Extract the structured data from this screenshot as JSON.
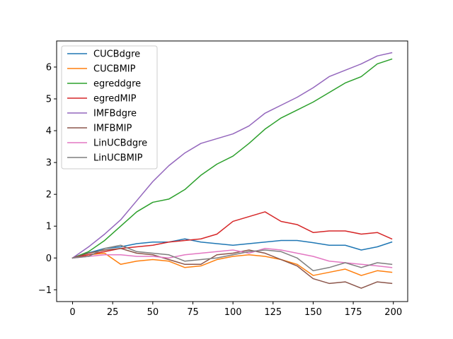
{
  "chart_data": {
    "type": "line",
    "title": "",
    "xlabel": "",
    "ylabel": "",
    "xlim": [
      -9.95,
      208.95
    ],
    "ylim": [
      -1.37,
      6.82
    ],
    "xticks": [
      0,
      25,
      50,
      75,
      100,
      125,
      150,
      175,
      200
    ],
    "yticks": [
      -1,
      0,
      1,
      2,
      3,
      4,
      5,
      6
    ],
    "grid": false,
    "legend_position": "top-left",
    "x": [
      0,
      10,
      20,
      30,
      40,
      50,
      60,
      70,
      80,
      90,
      100,
      110,
      120,
      130,
      140,
      150,
      160,
      170,
      180,
      190,
      199
    ],
    "series": [
      {
        "name": "CUCBdgre",
        "color": "#1f77b4",
        "values": [
          0.0,
          0.16,
          0.3,
          0.35,
          0.45,
          0.5,
          0.5,
          0.6,
          0.5,
          0.45,
          0.4,
          0.45,
          0.5,
          0.55,
          0.55,
          0.48,
          0.4,
          0.4,
          0.25,
          0.35,
          0.5
        ]
      },
      {
        "name": "CUCBMIP",
        "color": "#ff7f0e",
        "values": [
          0.0,
          0.1,
          0.15,
          -0.2,
          -0.1,
          -0.05,
          -0.1,
          -0.3,
          -0.25,
          -0.05,
          0.05,
          0.1,
          0.05,
          -0.05,
          -0.2,
          -0.55,
          -0.45,
          -0.35,
          -0.55,
          -0.4,
          -0.45
        ]
      },
      {
        "name": "egreddgre",
        "color": "#2ca02c",
        "values": [
          0.0,
          0.2,
          0.55,
          1.0,
          1.45,
          1.75,
          1.85,
          2.15,
          2.6,
          2.95,
          3.2,
          3.6,
          4.05,
          4.4,
          4.65,
          4.9,
          5.2,
          5.5,
          5.7,
          6.1,
          6.25
        ]
      },
      {
        "name": "egredMIP",
        "color": "#d62728",
        "values": [
          0.0,
          0.1,
          0.2,
          0.3,
          0.35,
          0.4,
          0.5,
          0.55,
          0.6,
          0.75,
          1.15,
          1.3,
          1.45,
          1.15,
          1.05,
          0.8,
          0.85,
          0.85,
          0.75,
          0.8,
          0.6
        ]
      },
      {
        "name": "IMFBdgre",
        "color": "#9467bd",
        "values": [
          0.0,
          0.35,
          0.75,
          1.2,
          1.8,
          2.4,
          2.9,
          3.3,
          3.6,
          3.75,
          3.9,
          4.15,
          4.55,
          4.8,
          5.05,
          5.35,
          5.7,
          5.9,
          6.1,
          6.35,
          6.45
        ]
      },
      {
        "name": "IMFBMIP",
        "color": "#8c564b",
        "values": [
          0.0,
          0.15,
          0.25,
          0.3,
          0.15,
          0.1,
          -0.05,
          -0.2,
          -0.2,
          0.1,
          0.15,
          0.25,
          0.15,
          -0.05,
          -0.25,
          -0.65,
          -0.8,
          -0.75,
          -0.95,
          -0.75,
          -0.8
        ]
      },
      {
        "name": "LinUCBdgre",
        "color": "#e377c2",
        "values": [
          0.0,
          0.05,
          0.1,
          0.1,
          0.05,
          0.05,
          0.0,
          0.1,
          0.15,
          0.2,
          0.25,
          0.15,
          0.3,
          0.25,
          0.15,
          0.05,
          -0.1,
          -0.15,
          -0.2,
          -0.25,
          -0.3
        ]
      },
      {
        "name": "LinUCBMIP",
        "color": "#7f7f7f",
        "values": [
          0.0,
          0.05,
          0.3,
          0.4,
          0.2,
          0.15,
          0.1,
          -0.1,
          -0.05,
          0.0,
          0.1,
          0.2,
          0.25,
          0.2,
          0.0,
          -0.4,
          -0.3,
          -0.15,
          -0.3,
          -0.15,
          -0.2
        ]
      }
    ]
  }
}
